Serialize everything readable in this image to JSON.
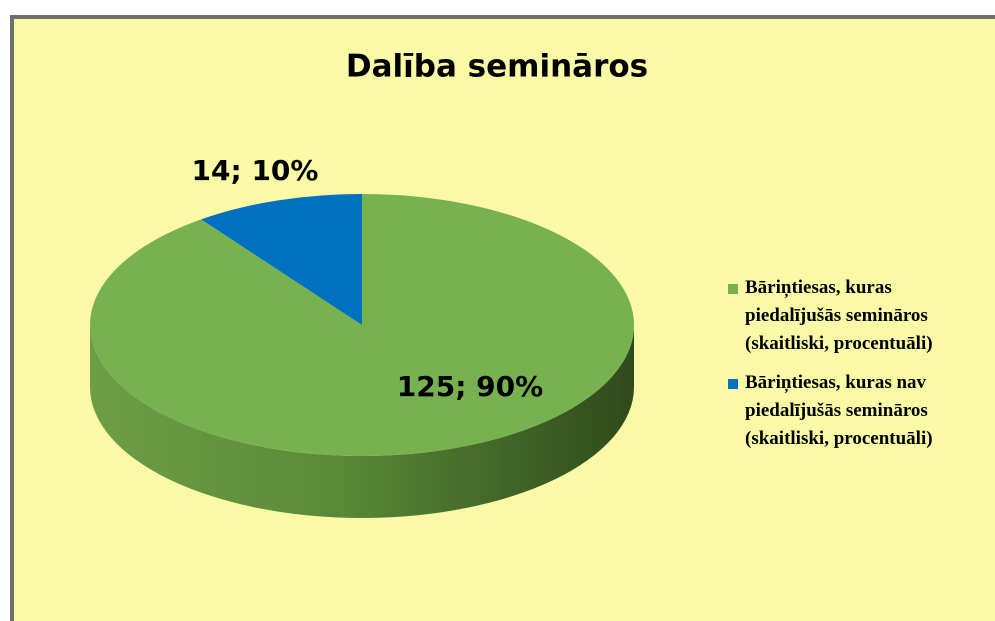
{
  "chart_data": {
    "type": "pie",
    "title": "Dalība semināros",
    "categories": [
      "Bāriņtiesas, kuras piedalījušās semināros (skaitliski, procentuāli)",
      "Bāriņtiesas, kuras nav piedalījušās semināros (skaitliski, procentuāli)"
    ],
    "values": [
      125,
      14
    ],
    "value_labels": [
      "125; 90%",
      "14; 10%"
    ],
    "colors": [
      "#77b150",
      "#0070c0"
    ],
    "legend": "right"
  }
}
